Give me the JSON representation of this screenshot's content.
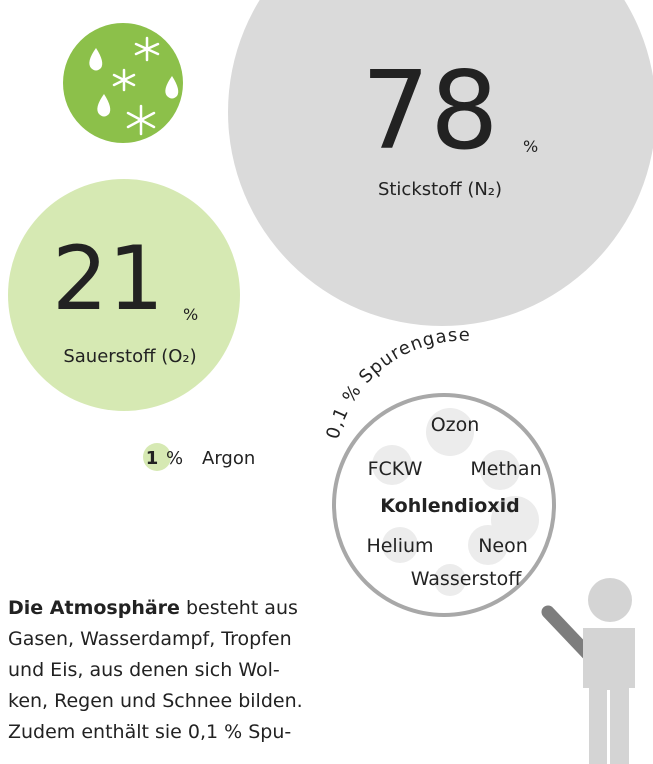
{
  "nitrogen": {
    "value": "78",
    "unit": "%",
    "label": "Stickstoff (N₂)"
  },
  "oxygen": {
    "value": "21",
    "unit": "%",
    "label": "Sauerstoff (O₂)"
  },
  "argon": {
    "value": "1",
    "unit": "%",
    "label": "Argon"
  },
  "trace_gases": {
    "title": "0,1 % Spurengase",
    "gases": [
      "Ozon",
      "FCKW",
      "Methan",
      "Kohlendioxid",
      "Helium",
      "Neon",
      "Wasserstoff"
    ]
  },
  "paragraph": {
    "bold": "Die Atmosphäre",
    "lines": [
      "besteht aus",
      "Gasen, Wasserdampf, Tropfen",
      "und Eis, aus denen sich Wol-",
      "ken, Regen und Schnee bilden.",
      "Zudem enthält sie 0,1 % Spu-"
    ]
  }
}
